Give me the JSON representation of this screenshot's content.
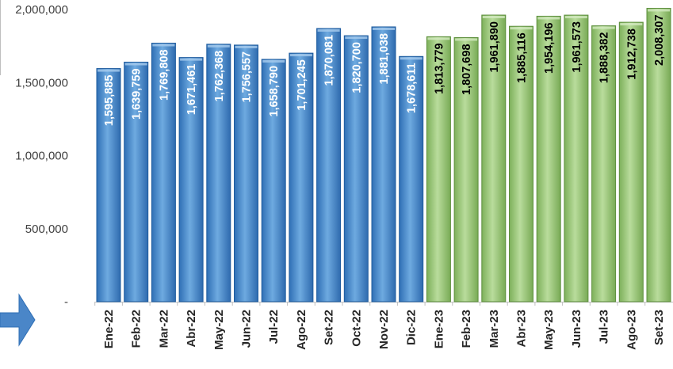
{
  "chart_data": {
    "type": "bar",
    "title": "",
    "xlabel": "",
    "ylabel": "",
    "ylim": [
      0,
      2000000
    ],
    "yticks": [
      0,
      500000,
      1000000,
      1500000,
      2000000
    ],
    "ytick_labels": [
      "-",
      "500,000",
      "1,000,000",
      "1,500,000",
      "2,000,000"
    ],
    "grid": false,
    "categories": [
      "Ene-22",
      "Feb-22",
      "Mar-22",
      "Abr-22",
      "May-22",
      "Jun-22",
      "Jul-22",
      "Ago-22",
      "Set-22",
      "Oct-22",
      "Nov-22",
      "Dic-22",
      "Ene-23",
      "Feb-23",
      "Mar-23",
      "Abr-23",
      "May-23",
      "Jun-23",
      "Jul-23",
      "Ago-23",
      "Set-23"
    ],
    "values": [
      1595885,
      1639759,
      1769808,
      1671461,
      1762368,
      1756557,
      1658790,
      1701245,
      1870081,
      1820700,
      1881038,
      1678611,
      1813779,
      1807698,
      1961890,
      1885116,
      1954196,
      1961573,
      1888382,
      1912738,
      2008307
    ],
    "value_labels": [
      "1,595,885",
      "1,639,759",
      "1,769,808",
      "1,671,461",
      "1,762,368",
      "1,756,557",
      "1,658,790",
      "1,701,245",
      "1,870,081",
      "1,820,700",
      "1,881,038",
      "1,678,611",
      "1,813,779",
      "1,807,698",
      "1,961,890",
      "1,885,116",
      "1,954,196",
      "1,961,573",
      "1,888,382",
      "1,912,738",
      "2,008,307"
    ],
    "bar_colors": [
      "#5B9BD5",
      "#5B9BD5",
      "#5B9BD5",
      "#5B9BD5",
      "#5B9BD5",
      "#5B9BD5",
      "#5B9BD5",
      "#5B9BD5",
      "#5B9BD5",
      "#5B9BD5",
      "#5B9BD5",
      "#5B9BD5",
      "#9BC97A",
      "#9BC97A",
      "#9BC97A",
      "#9BC97A",
      "#9BC97A",
      "#9BC97A",
      "#9BC97A",
      "#9BC97A",
      "#9BC97A"
    ],
    "label_colors": [
      "#ffffff",
      "#ffffff",
      "#ffffff",
      "#ffffff",
      "#ffffff",
      "#ffffff",
      "#ffffff",
      "#ffffff",
      "#ffffff",
      "#ffffff",
      "#ffffff",
      "#ffffff",
      "#000000",
      "#000000",
      "#000000",
      "#000000",
      "#000000",
      "#000000",
      "#000000",
      "#000000",
      "#000000"
    ],
    "colors": {
      "series_2022": "#5B9BD5",
      "series_2023": "#9BC97A",
      "arrow": "#4A86C8"
    }
  },
  "decor": {
    "arrow_icon": "right-arrow-icon"
  }
}
